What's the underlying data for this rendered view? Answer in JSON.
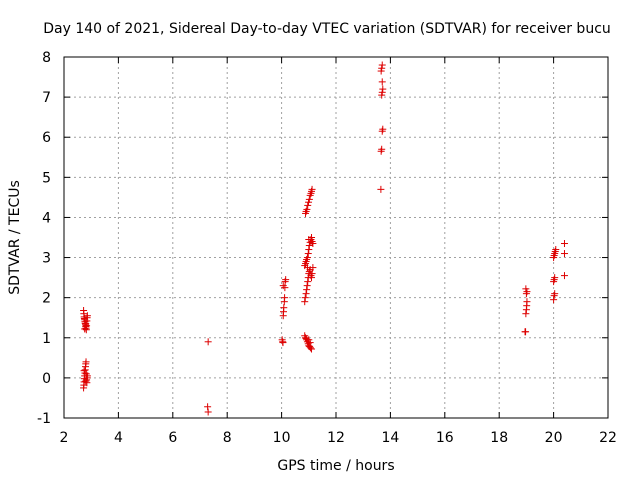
{
  "chart_data": {
    "type": "scatter",
    "title": "Day 140 of 2021, Sidereal Day-to-day VTEC variation (SDTVAR) for receiver bucu",
    "xlabel": "GPS time / hours",
    "ylabel": "SDTVAR / TECUs",
    "xlim": [
      2,
      22
    ],
    "ylim": [
      -1,
      8
    ],
    "xticks": [
      2,
      4,
      6,
      8,
      10,
      12,
      14,
      16,
      18,
      20,
      22
    ],
    "yticks": [
      -1,
      0,
      1,
      2,
      3,
      4,
      5,
      6,
      7,
      8
    ],
    "grid": true,
    "marker": "+",
    "marker_color": "#dd0000",
    "series": [
      {
        "name": "SDTVAR",
        "points": [
          [
            2.72,
            1.68
          ],
          [
            2.73,
            1.6
          ],
          [
            2.74,
            1.52
          ],
          [
            2.75,
            1.48
          ],
          [
            2.76,
            1.45
          ],
          [
            2.77,
            1.4
          ],
          [
            2.78,
            1.36
          ],
          [
            2.79,
            1.32
          ],
          [
            2.8,
            1.28
          ],
          [
            2.81,
            1.24
          ],
          [
            2.82,
            1.2
          ],
          [
            2.83,
            1.3
          ],
          [
            2.84,
            1.42
          ],
          [
            2.85,
            1.5
          ],
          [
            2.86,
            1.55
          ],
          [
            2.76,
            1.22
          ],
          [
            2.8,
            1.35
          ],
          [
            2.72,
            -0.25
          ],
          [
            2.73,
            -0.18
          ],
          [
            2.74,
            -0.1
          ],
          [
            2.75,
            -0.02
          ],
          [
            2.76,
            0.05
          ],
          [
            2.77,
            0.12
          ],
          [
            2.78,
            0.2
          ],
          [
            2.79,
            0.28
          ],
          [
            2.8,
            0.35
          ],
          [
            2.81,
            0.4
          ],
          [
            2.82,
            0.1
          ],
          [
            2.83,
            -0.05
          ],
          [
            2.84,
            -0.12
          ],
          [
            2.85,
            0.0
          ],
          [
            2.74,
            0.18
          ],
          [
            2.8,
            -0.08
          ],
          [
            2.86,
            0.05
          ],
          [
            7.3,
            0.9
          ],
          [
            7.28,
            -0.72
          ],
          [
            7.3,
            -0.85
          ],
          [
            10.02,
            0.95
          ],
          [
            10.04,
            0.9
          ],
          [
            10.05,
            0.88
          ],
          [
            10.06,
            1.55
          ],
          [
            10.07,
            1.65
          ],
          [
            10.08,
            1.75
          ],
          [
            10.1,
            1.9
          ],
          [
            10.11,
            2.0
          ],
          [
            10.12,
            2.25
          ],
          [
            10.13,
            2.4
          ],
          [
            10.15,
            2.45
          ],
          [
            10.06,
            2.3
          ],
          [
            10.85,
            1.05
          ],
          [
            10.88,
            1.0
          ],
          [
            10.9,
            0.98
          ],
          [
            10.92,
            0.95
          ],
          [
            10.95,
            0.9
          ],
          [
            10.98,
            0.85
          ],
          [
            11.0,
            0.8
          ],
          [
            11.03,
            0.78
          ],
          [
            11.06,
            0.75
          ],
          [
            11.1,
            0.72
          ],
          [
            11.0,
            0.95
          ],
          [
            11.05,
            0.88
          ],
          [
            10.85,
            1.9
          ],
          [
            10.87,
            2.0
          ],
          [
            10.9,
            2.1
          ],
          [
            10.92,
            2.2
          ],
          [
            10.94,
            2.3
          ],
          [
            10.96,
            2.4
          ],
          [
            10.98,
            2.5
          ],
          [
            11.0,
            2.6
          ],
          [
            11.02,
            2.65
          ],
          [
            11.05,
            2.7
          ],
          [
            11.08,
            2.55
          ],
          [
            11.1,
            2.5
          ],
          [
            11.12,
            2.6
          ],
          [
            11.15,
            2.75
          ],
          [
            10.85,
            2.8
          ],
          [
            10.88,
            2.85
          ],
          [
            10.9,
            2.9
          ],
          [
            10.92,
            2.95
          ],
          [
            10.95,
            3.0
          ],
          [
            10.98,
            3.1
          ],
          [
            11.0,
            3.2
          ],
          [
            11.02,
            3.3
          ],
          [
            11.05,
            3.38
          ],
          [
            11.08,
            3.45
          ],
          [
            11.1,
            3.5
          ],
          [
            11.12,
            3.4
          ],
          [
            11.15,
            3.35
          ],
          [
            10.95,
            2.75
          ],
          [
            11.0,
            3.45
          ],
          [
            10.88,
            4.1
          ],
          [
            10.9,
            4.15
          ],
          [
            10.93,
            4.2
          ],
          [
            10.96,
            4.3
          ],
          [
            10.99,
            4.38
          ],
          [
            11.02,
            4.45
          ],
          [
            11.05,
            4.55
          ],
          [
            11.08,
            4.6
          ],
          [
            11.1,
            4.65
          ],
          [
            11.12,
            4.7
          ],
          [
            13.65,
            4.7
          ],
          [
            13.66,
            5.65
          ],
          [
            13.68,
            5.7
          ],
          [
            13.7,
            6.15
          ],
          [
            13.72,
            6.2
          ],
          [
            13.68,
            7.05
          ],
          [
            13.7,
            7.12
          ],
          [
            13.72,
            7.2
          ],
          [
            13.7,
            7.38
          ],
          [
            13.66,
            7.65
          ],
          [
            13.68,
            7.72
          ],
          [
            13.7,
            7.8
          ],
          [
            18.95,
            1.15
          ],
          [
            18.97,
            1.15
          ],
          [
            18.98,
            1.6
          ],
          [
            19.0,
            1.7
          ],
          [
            19.01,
            1.8
          ],
          [
            19.02,
            1.9
          ],
          [
            19.0,
            2.1
          ],
          [
            19.02,
            2.15
          ],
          [
            18.98,
            2.22
          ],
          [
            20.0,
            1.95
          ],
          [
            20.02,
            2.05
          ],
          [
            20.04,
            2.1
          ],
          [
            20.0,
            2.4
          ],
          [
            20.02,
            2.45
          ],
          [
            20.04,
            2.5
          ],
          [
            20.0,
            3.0
          ],
          [
            20.02,
            3.05
          ],
          [
            20.04,
            3.1
          ],
          [
            20.06,
            3.15
          ],
          [
            20.08,
            3.2
          ],
          [
            20.4,
            2.55
          ],
          [
            20.4,
            3.1
          ],
          [
            20.4,
            3.35
          ]
        ]
      }
    ]
  }
}
